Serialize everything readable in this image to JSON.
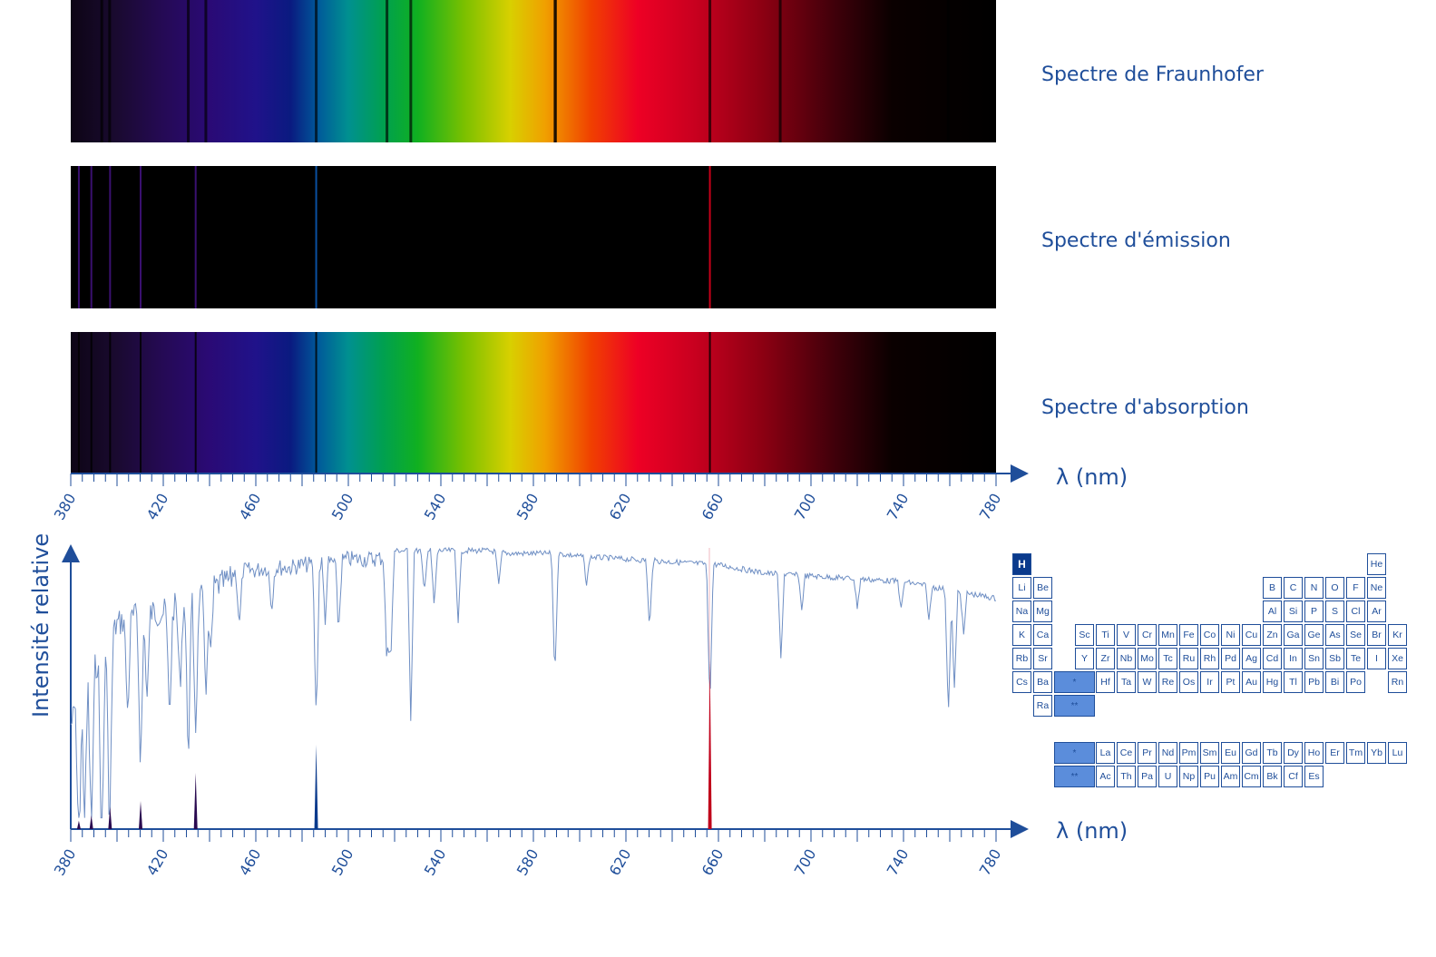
{
  "spectra": {
    "fraunhofer_label": "Spectre de Fraunhofer",
    "emission_label": "Spectre d'émission",
    "absorption_label": "Spectre d'absorption",
    "hydrogen_lines_nm": [
      383.5,
      388.9,
      397.0,
      410.2,
      434.0,
      486.1,
      656.3
    ],
    "fraunhofer_lines_nm": [
      393.4,
      396.8,
      430.8,
      438.4,
      486.1,
      516.7,
      527.0,
      589.3,
      589.6,
      656.3,
      686.7,
      759.4
    ]
  },
  "axes": {
    "wavelength_label": "λ (nm)",
    "intensity_label": "Intensité relative",
    "ticks": [
      "380",
      "420",
      "460",
      "500",
      "540",
      "580",
      "620",
      "660",
      "700",
      "740",
      "780"
    ]
  },
  "chart_data": {
    "type": "line",
    "xlabel": "λ (nm)",
    "ylabel": "Intensité relative",
    "xlim": [
      380,
      780
    ],
    "ylim": [
      0,
      1
    ],
    "series": [
      {
        "x": [
          380,
          385,
          390,
          395,
          400,
          405,
          410,
          415,
          420,
          425,
          430,
          435,
          440,
          445,
          450,
          455,
          460,
          465,
          470,
          475,
          480,
          485,
          490,
          495,
          500,
          510,
          520,
          530,
          540,
          550,
          560,
          570,
          580,
          590,
          600,
          620,
          640,
          660,
          680,
          700,
          720,
          740,
          760,
          780
        ],
        "values": [
          0.42,
          0.55,
          0.62,
          0.68,
          0.78,
          0.8,
          0.81,
          0.82,
          0.82,
          0.84,
          0.85,
          0.86,
          0.9,
          0.92,
          0.94,
          0.95,
          0.95,
          0.96,
          0.96,
          0.96,
          0.97,
          0.97,
          0.98,
          0.98,
          0.99,
          0.99,
          1.0,
          1.0,
          1.0,
          1.0,
          1.0,
          0.99,
          0.99,
          0.99,
          0.98,
          0.97,
          0.96,
          0.95,
          0.92,
          0.91,
          0.9,
          0.89,
          0.86,
          0.83
        ],
        "absorption_lines": [
          {
            "x": 383.5,
            "depth": 0.6
          },
          {
            "x": 386.0,
            "depth": 0.5
          },
          {
            "x": 388.9,
            "depth": 0.6
          },
          {
            "x": 393.4,
            "depth": 0.75
          },
          {
            "x": 396.8,
            "depth": 0.7
          },
          {
            "x": 404.6,
            "depth": 0.35
          },
          {
            "x": 410.2,
            "depth": 0.55
          },
          {
            "x": 413.0,
            "depth": 0.3
          },
          {
            "x": 422.7,
            "depth": 0.4
          },
          {
            "x": 427.2,
            "depth": 0.3
          },
          {
            "x": 430.8,
            "depth": 0.55
          },
          {
            "x": 434.0,
            "depth": 0.45
          },
          {
            "x": 438.4,
            "depth": 0.35
          },
          {
            "x": 440.5,
            "depth": 0.25
          },
          {
            "x": 452.9,
            "depth": 0.2
          },
          {
            "x": 466.8,
            "depth": 0.15
          },
          {
            "x": 486.1,
            "depth": 0.55
          },
          {
            "x": 490.0,
            "depth": 0.2
          },
          {
            "x": 495.8,
            "depth": 0.25
          },
          {
            "x": 516.7,
            "depth": 0.4
          },
          {
            "x": 518.4,
            "depth": 0.35
          },
          {
            "x": 527.0,
            "depth": 0.6
          },
          {
            "x": 532.8,
            "depth": 0.15
          },
          {
            "x": 537.1,
            "depth": 0.2
          },
          {
            "x": 547.5,
            "depth": 0.25
          },
          {
            "x": 565.0,
            "depth": 0.12
          },
          {
            "x": 589.3,
            "depth": 0.45
          },
          {
            "x": 603.0,
            "depth": 0.1
          },
          {
            "x": 630.2,
            "depth": 0.25
          },
          {
            "x": 656.3,
            "depth": 0.5
          },
          {
            "x": 687.0,
            "depth": 0.3
          },
          {
            "x": 696.0,
            "depth": 0.12
          },
          {
            "x": 720.0,
            "depth": 0.1
          },
          {
            "x": 739.0,
            "depth": 0.1
          },
          {
            "x": 751.0,
            "depth": 0.12
          },
          {
            "x": 759.4,
            "depth": 0.45
          },
          {
            "x": 762.0,
            "depth": 0.35
          },
          {
            "x": 766.0,
            "depth": 0.15
          }
        ]
      }
    ],
    "emission_peaks": [
      {
        "x": 383.5,
        "value": 0.03
      },
      {
        "x": 388.9,
        "value": 0.05
      },
      {
        "x": 397.0,
        "value": 0.08
      },
      {
        "x": 410.2,
        "value": 0.1
      },
      {
        "x": 434.0,
        "value": 0.2
      },
      {
        "x": 486.1,
        "value": 0.3
      },
      {
        "x": 656.3,
        "value": 0.6
      }
    ]
  },
  "periodic_table": {
    "highlighted": "H",
    "lanthanide_marker": "*",
    "actinide_marker": "**",
    "cells": [
      {
        "s": "H",
        "r": 0,
        "c": 0
      },
      {
        "s": "He",
        "r": 0,
        "c": 17
      },
      {
        "s": "Li",
        "r": 1,
        "c": 0
      },
      {
        "s": "Be",
        "r": 1,
        "c": 1
      },
      {
        "s": "B",
        "r": 1,
        "c": 12
      },
      {
        "s": "C",
        "r": 1,
        "c": 13
      },
      {
        "s": "N",
        "r": 1,
        "c": 14
      },
      {
        "s": "O",
        "r": 1,
        "c": 15
      },
      {
        "s": "F",
        "r": 1,
        "c": 16
      },
      {
        "s": "Ne",
        "r": 1,
        "c": 17
      },
      {
        "s": "Na",
        "r": 2,
        "c": 0
      },
      {
        "s": "Mg",
        "r": 2,
        "c": 1
      },
      {
        "s": "Al",
        "r": 2,
        "c": 12
      },
      {
        "s": "Si",
        "r": 2,
        "c": 13
      },
      {
        "s": "P",
        "r": 2,
        "c": 14
      },
      {
        "s": "S",
        "r": 2,
        "c": 15
      },
      {
        "s": "Cl",
        "r": 2,
        "c": 16
      },
      {
        "s": "Ar",
        "r": 2,
        "c": 17
      },
      {
        "s": "K",
        "r": 3,
        "c": 0
      },
      {
        "s": "Ca",
        "r": 3,
        "c": 1
      },
      {
        "s": "Sc",
        "r": 3,
        "c": 3
      },
      {
        "s": "Ti",
        "r": 3,
        "c": 4
      },
      {
        "s": "V",
        "r": 3,
        "c": 5
      },
      {
        "s": "Cr",
        "r": 3,
        "c": 6
      },
      {
        "s": "Mn",
        "r": 3,
        "c": 7
      },
      {
        "s": "Fe",
        "r": 3,
        "c": 8
      },
      {
        "s": "Co",
        "r": 3,
        "c": 9
      },
      {
        "s": "Ni",
        "r": 3,
        "c": 10
      },
      {
        "s": "Cu",
        "r": 3,
        "c": 11
      },
      {
        "s": "Zn",
        "r": 3,
        "c": 12
      },
      {
        "s": "Ga",
        "r": 3,
        "c": 13
      },
      {
        "s": "Ge",
        "r": 3,
        "c": 14
      },
      {
        "s": "As",
        "r": 3,
        "c": 15
      },
      {
        "s": "Se",
        "r": 3,
        "c": 16
      },
      {
        "s": "Br",
        "r": 3,
        "c": 17
      },
      {
        "s": "Kr",
        "r": 3,
        "c": 18
      },
      {
        "s": "Rb",
        "r": 4,
        "c": 0
      },
      {
        "s": "Sr",
        "r": 4,
        "c": 1
      },
      {
        "s": "Y",
        "r": 4,
        "c": 3
      },
      {
        "s": "Zr",
        "r": 4,
        "c": 4
      },
      {
        "s": "Nb",
        "r": 4,
        "c": 5
      },
      {
        "s": "Mo",
        "r": 4,
        "c": 6
      },
      {
        "s": "Tc",
        "r": 4,
        "c": 7
      },
      {
        "s": "Ru",
        "r": 4,
        "c": 8
      },
      {
        "s": "Rh",
        "r": 4,
        "c": 9
      },
      {
        "s": "Pd",
        "r": 4,
        "c": 10
      },
      {
        "s": "Ag",
        "r": 4,
        "c": 11
      },
      {
        "s": "Cd",
        "r": 4,
        "c": 12
      },
      {
        "s": "In",
        "r": 4,
        "c": 13
      },
      {
        "s": "Sn",
        "r": 4,
        "c": 14
      },
      {
        "s": "Sb",
        "r": 4,
        "c": 15
      },
      {
        "s": "Te",
        "r": 4,
        "c": 16
      },
      {
        "s": "I",
        "r": 4,
        "c": 17
      },
      {
        "s": "Xe",
        "r": 4,
        "c": 18
      },
      {
        "s": "Cs",
        "r": 5,
        "c": 0
      },
      {
        "s": "Ba",
        "r": 5,
        "c": 1
      },
      {
        "s": "*",
        "r": 5,
        "c": 2,
        "star": true
      },
      {
        "s": "Hf",
        "r": 5,
        "c": 4
      },
      {
        "s": "Ta",
        "r": 5,
        "c": 5
      },
      {
        "s": "W",
        "r": 5,
        "c": 6
      },
      {
        "s": "Re",
        "r": 5,
        "c": 7
      },
      {
        "s": "Os",
        "r": 5,
        "c": 8
      },
      {
        "s": "Ir",
        "r": 5,
        "c": 9
      },
      {
        "s": "Pt",
        "r": 5,
        "c": 10
      },
      {
        "s": "Au",
        "r": 5,
        "c": 11
      },
      {
        "s": "Hg",
        "r": 5,
        "c": 12
      },
      {
        "s": "Tl",
        "r": 5,
        "c": 13
      },
      {
        "s": "Pb",
        "r": 5,
        "c": 14
      },
      {
        "s": "Bi",
        "r": 5,
        "c": 15
      },
      {
        "s": "Po",
        "r": 5,
        "c": 16
      },
      {
        "s": "Rn",
        "r": 5,
        "c": 18
      },
      {
        "s": "Ra",
        "r": 6,
        "c": 1
      },
      {
        "s": "**",
        "r": 6,
        "c": 2,
        "star": true
      },
      {
        "s": "*",
        "r": 8,
        "c": 2,
        "star": true
      },
      {
        "s": "La",
        "r": 8,
        "c": 4
      },
      {
        "s": "Ce",
        "r": 8,
        "c": 5
      },
      {
        "s": "Pr",
        "r": 8,
        "c": 6
      },
      {
        "s": "Nd",
        "r": 8,
        "c": 7
      },
      {
        "s": "Pm",
        "r": 8,
        "c": 8
      },
      {
        "s": "Sm",
        "r": 8,
        "c": 9
      },
      {
        "s": "Eu",
        "r": 8,
        "c": 10
      },
      {
        "s": "Gd",
        "r": 8,
        "c": 11
      },
      {
        "s": "Tb",
        "r": 8,
        "c": 12
      },
      {
        "s": "Dy",
        "r": 8,
        "c": 13
      },
      {
        "s": "Ho",
        "r": 8,
        "c": 14
      },
      {
        "s": "Er",
        "r": 8,
        "c": 15
      },
      {
        "s": "Tm",
        "r": 8,
        "c": 16
      },
      {
        "s": "Yb",
        "r": 8,
        "c": 17
      },
      {
        "s": "Lu",
        "r": 8,
        "c": 18
      },
      {
        "s": "**",
        "r": 9,
        "c": 2,
        "star": true
      },
      {
        "s": "Ac",
        "r": 9,
        "c": 4
      },
      {
        "s": "Th",
        "r": 9,
        "c": 5
      },
      {
        "s": "Pa",
        "r": 9,
        "c": 6
      },
      {
        "s": "U",
        "r": 9,
        "c": 7
      },
      {
        "s": "Np",
        "r": 9,
        "c": 8
      },
      {
        "s": "Pu",
        "r": 9,
        "c": 9
      },
      {
        "s": "Am",
        "r": 9,
        "c": 10
      },
      {
        "s": "Cm",
        "r": 9,
        "c": 11
      },
      {
        "s": "Bk",
        "r": 9,
        "c": 12
      },
      {
        "s": "Cf",
        "r": 9,
        "c": 13
      },
      {
        "s": "Es",
        "r": 9,
        "c": 14
      }
    ]
  },
  "colors": {
    "accent": "#1f4e9a",
    "curve": "#6f8fc4",
    "highlight": "#0a3a8c",
    "star_fill": "#5b8ddb",
    "h_alpha": "#c0001a"
  }
}
